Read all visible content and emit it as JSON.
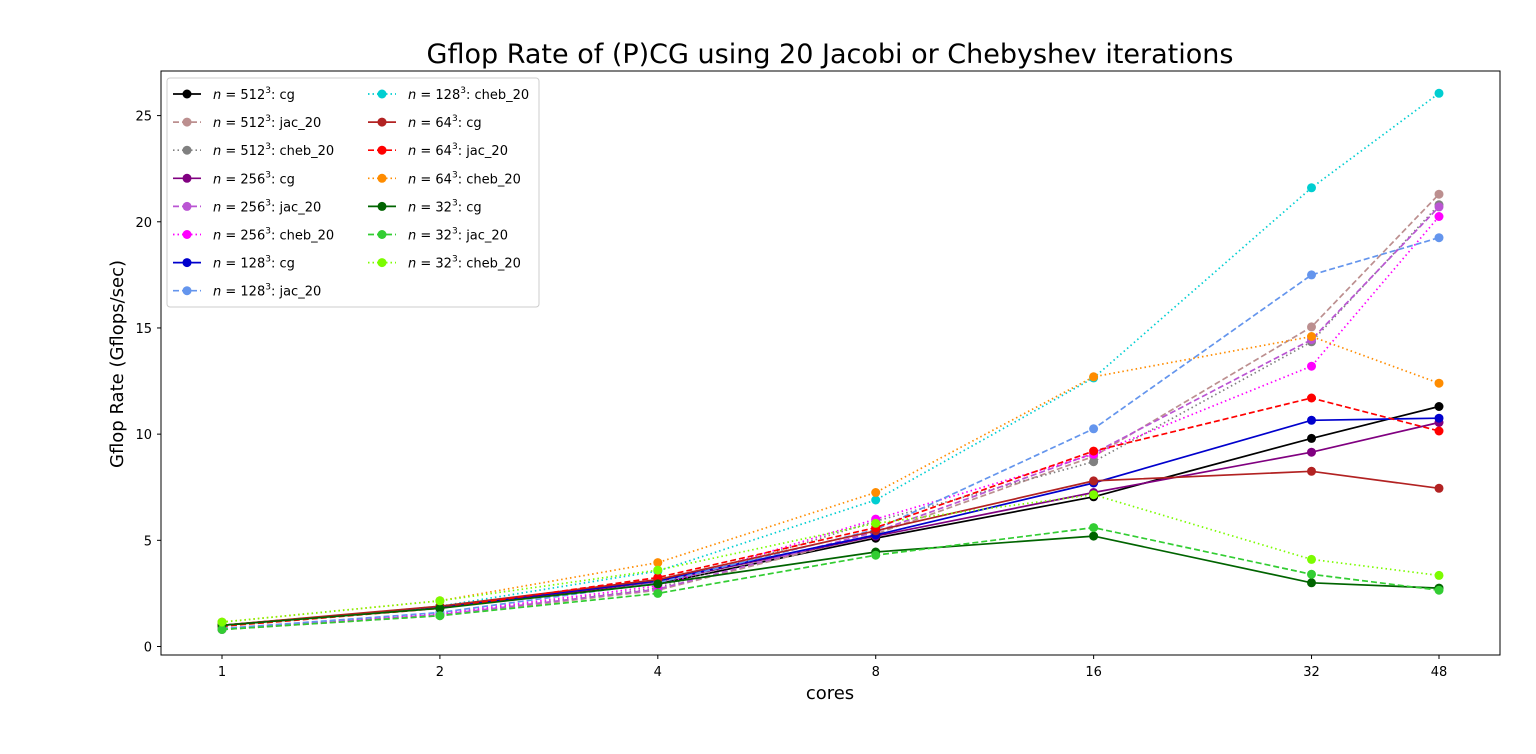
{
  "chart_data": {
    "type": "line",
    "title": "Gflop Rate of (P)CG using 20 Jacobi or Chebyshev iterations",
    "xlabel": "cores",
    "ylabel": "Gflop Rate (Gflops/sec)",
    "x_scale": "log2",
    "x": [
      1,
      2,
      4,
      8,
      16,
      32,
      48
    ],
    "x_tick_labels": [
      "1",
      "2",
      "4",
      "8",
      "16",
      "32",
      "48"
    ],
    "y_ticks": [
      0,
      5,
      10,
      15,
      20,
      25
    ],
    "ylim": [
      -0.4,
      27.1
    ],
    "grid": false,
    "legend_position": "upper-left",
    "legend_columns": 2,
    "series": [
      {
        "name": "n = 512^3: cg",
        "n": "512",
        "suffix": ": cg",
        "color": "#000000",
        "dash": "solid",
        "values": [
          1.0,
          1.85,
          2.95,
          5.1,
          7.05,
          9.8,
          11.3
        ]
      },
      {
        "name": "n = 512^3: jac_20",
        "n": "512",
        "suffix": ": jac_20",
        "color": "#bc8f8f",
        "dash": "dashed",
        "values": [
          0.8,
          1.45,
          2.65,
          5.3,
          8.95,
          15.05,
          21.3
        ]
      },
      {
        "name": "n = 512^3: cheb_20",
        "n": "512",
        "suffix": ": cheb_20",
        "color": "#808080",
        "dash": "dotted",
        "values": [
          0.8,
          1.5,
          2.75,
          5.9,
          8.7,
          14.35,
          20.8
        ]
      },
      {
        "name": "n = 256^3: cg",
        "n": "256",
        "suffix": ": cg",
        "color": "#800080",
        "dash": "solid",
        "values": [
          1.0,
          1.85,
          3.05,
          5.2,
          7.25,
          9.15,
          10.55
        ]
      },
      {
        "name": "n = 256^3: jac_20",
        "n": "256",
        "suffix": ": jac_20",
        "color": "#ba55d3",
        "dash": "dashed",
        "values": [
          0.8,
          1.5,
          2.7,
          5.4,
          9.1,
          14.45,
          20.7
        ]
      },
      {
        "name": "n = 256^3: cheb_20",
        "n": "256",
        "suffix": ": cheb_20",
        "color": "#ff00ff",
        "dash": "dotted",
        "values": [
          0.85,
          1.55,
          2.85,
          6.0,
          9.05,
          13.2,
          20.25
        ]
      },
      {
        "name": "n = 128^3: cg",
        "n": "128",
        "suffix": ": cg",
        "color": "#0000cd",
        "dash": "solid",
        "values": [
          1.0,
          1.85,
          3.1,
          5.25,
          7.7,
          10.65,
          10.75
        ]
      },
      {
        "name": "n = 128^3: jac_20",
        "n": "128",
        "suffix": ": jac_20",
        "color": "#6495ed",
        "dash": "dashed",
        "values": [
          0.85,
          1.6,
          3.0,
          5.5,
          10.25,
          17.5,
          19.25
        ]
      },
      {
        "name": "n = 128^3: cheb_20",
        "n": "128",
        "suffix": ": cheb_20",
        "color": "#00ced1",
        "dash": "dotted",
        "values": [
          0.95,
          1.9,
          3.55,
          6.9,
          12.65,
          21.6,
          26.05
        ]
      },
      {
        "name": "n = 64^3: cg",
        "n": "64",
        "suffix": ": cg",
        "color": "#b22222",
        "dash": "solid",
        "values": [
          1.0,
          1.9,
          3.15,
          5.45,
          7.8,
          8.25,
          7.45
        ]
      },
      {
        "name": "n = 64^3: jac_20",
        "n": "64",
        "suffix": ": jac_20",
        "color": "#ff0000",
        "dash": "dashed",
        "values": [
          0.95,
          1.8,
          3.25,
          5.6,
          9.2,
          11.7,
          10.15
        ]
      },
      {
        "name": "n = 64^3: cheb_20",
        "n": "64",
        "suffix": ": cheb_20",
        "color": "#ff8c00",
        "dash": "dotted",
        "values": [
          1.15,
          2.15,
          3.95,
          7.25,
          12.7,
          14.6,
          12.4
        ]
      },
      {
        "name": "n = 32^3: cg",
        "n": "32",
        "suffix": ": cg",
        "color": "#006400",
        "dash": "solid",
        "values": [
          1.0,
          1.8,
          2.95,
          4.45,
          5.2,
          3.0,
          2.75
        ]
      },
      {
        "name": "n = 32^3: jac_20",
        "n": "32",
        "suffix": ": jac_20",
        "color": "#32cd32",
        "dash": "dashed",
        "values": [
          0.8,
          1.45,
          2.5,
          4.3,
          5.6,
          3.4,
          2.65
        ]
      },
      {
        "name": "n = 32^3: cheb_20",
        "n": "32",
        "suffix": ": cheb_20",
        "color": "#7cfc00",
        "dash": "dotted",
        "values": [
          1.15,
          2.15,
          3.6,
          5.8,
          7.15,
          4.1,
          3.35
        ]
      }
    ]
  }
}
